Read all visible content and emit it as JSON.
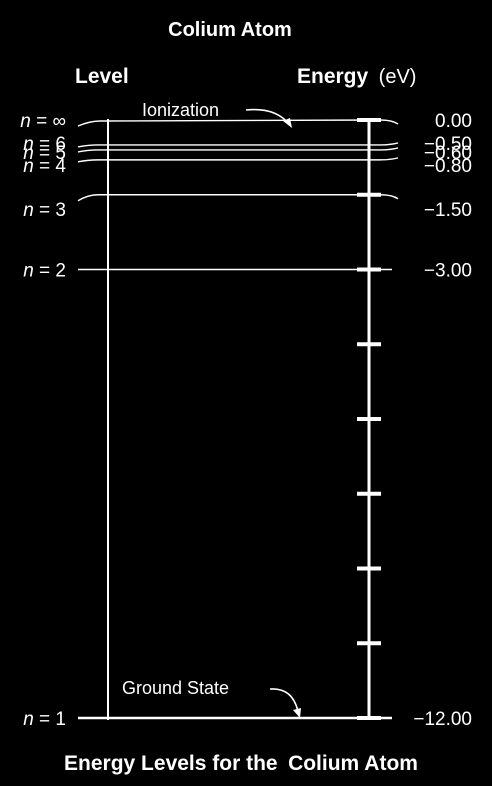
{
  "title": "Colium Atom",
  "headers": {
    "level": "Level",
    "energy": "Energy",
    "unit": "(eV)"
  },
  "annotations": {
    "ionization": "Ionization",
    "ground_state": "Ground State"
  },
  "footer": {
    "prefix": "Energy Levels for the",
    "atom": "Colium Atom"
  },
  "levels": [
    {
      "n_symbol": "n",
      "n_value": "∞",
      "energy": "0.00",
      "energy_ev": 0.0
    },
    {
      "n_symbol": "n",
      "n_value": "6",
      "energy": "−0.50",
      "energy_ev": -0.5
    },
    {
      "n_symbol": "n",
      "n_value": "5",
      "energy": "−0.60",
      "energy_ev": -0.6
    },
    {
      "n_symbol": "n",
      "n_value": "4",
      "energy": "−0.80",
      "energy_ev": -0.8
    },
    {
      "n_symbol": "n",
      "n_value": "3",
      "energy": "−1.50",
      "energy_ev": -1.5
    },
    {
      "n_symbol": "n",
      "n_value": "2",
      "energy": "−3.00",
      "energy_ev": -3.0
    },
    {
      "n_symbol": "n",
      "n_value": "1",
      "energy": "−12.00",
      "energy_ev": -12.0
    }
  ],
  "energy_scale": {
    "min_ev": -12.0,
    "max_ev": 0.0,
    "tick_interval_ev": 1.5
  }
}
